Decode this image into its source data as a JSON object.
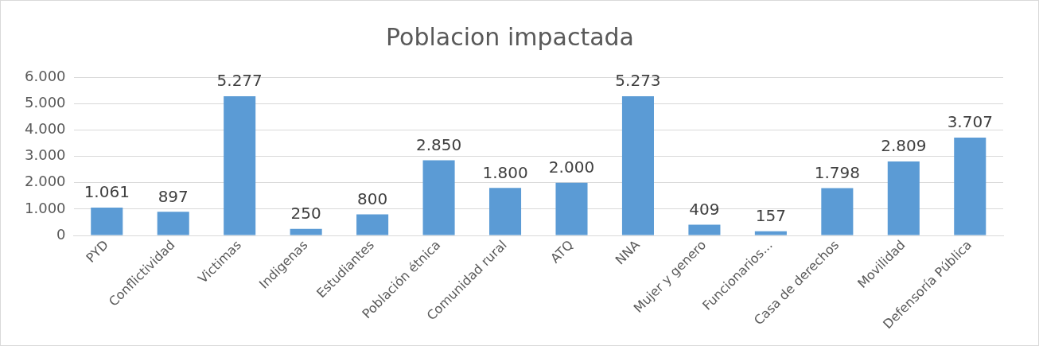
{
  "chart_data": {
    "type": "bar",
    "title": "Poblacion impactada",
    "categories": [
      "PYD",
      "Conflictividad",
      "Victimas",
      "Indigenas",
      "Estudiantes",
      "Población étnica",
      "Comunidad rural",
      "ATQ",
      "NNA",
      "Mujer y genero",
      "Funcionarios...",
      "Casa de derechos",
      "Movilidad",
      "Defensoría Pública"
    ],
    "values": [
      1061,
      897,
      5277,
      250,
      800,
      2850,
      1800,
      2000,
      5273,
      409,
      157,
      1798,
      2809,
      3707
    ],
    "value_labels": [
      "1.061",
      "897",
      "5.277",
      "250",
      "800",
      "2.850",
      "1.800",
      "2.000",
      "5.273",
      "409",
      "157",
      "1.798",
      "2.809",
      "3.707"
    ],
    "color": "#5b9bd5",
    "ylim": [
      0,
      6000
    ],
    "yticks": [
      0,
      {
        "value": 1000,
        "label": "1.000"
      },
      {
        "value": 2000,
        "label": "2.000"
      },
      {
        "value": 3000,
        "label": "3.000"
      },
      {
        "value": 4000,
        "label": "4.000"
      },
      {
        "value": 5000,
        "label": "5.000"
      },
      {
        "value": 6000,
        "label": "6.000"
      }
    ],
    "grid": "y",
    "legend": false
  }
}
